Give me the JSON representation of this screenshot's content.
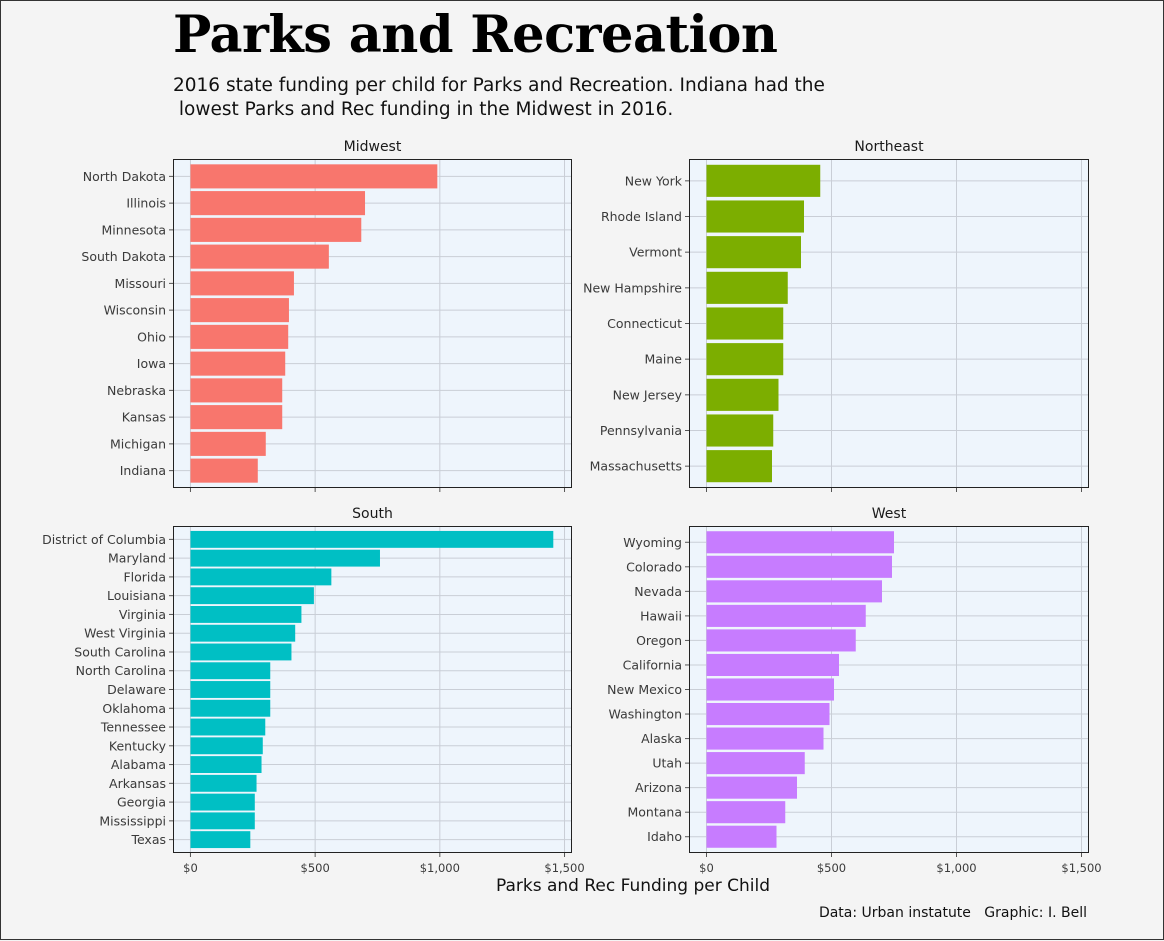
{
  "title": "Parks and Recreation",
  "subtitle": "2016 state funding per child for Parks and Recreation. Indiana had the\n lowest Parks and Rec funding in the Midwest in 2016.",
  "x_axis_label": "Parks and Rec Funding per Child",
  "caption": "Data: Urban instatute   Graphic: I. Bell",
  "colors": {
    "Midwest": "#f8766d",
    "Northeast": "#7cae00",
    "South": "#00bfc4",
    "West": "#c77cff",
    "panel_bg": "#eef5fc",
    "grid": "#c9ced6"
  },
  "chart_data": [
    {
      "type": "bar",
      "orientation": "horizontal",
      "title": "Midwest",
      "categories": [
        "North Dakota",
        "Illinois",
        "Minnesota",
        "South Dakota",
        "Missouri",
        "Wisconsin",
        "Ohio",
        "Iowa",
        "Nebraska",
        "Kansas",
        "Michigan",
        "Indiana"
      ],
      "values": [
        990,
        700,
        685,
        555,
        415,
        395,
        392,
        380,
        368,
        368,
        302,
        270
      ],
      "xlim": [
        -70,
        1530
      ],
      "ticks": [
        0,
        500,
        1000,
        1500
      ],
      "tick_labels": [
        "$0",
        "$500",
        "$1,000",
        "$1,500"
      ],
      "grid": true
    },
    {
      "type": "bar",
      "orientation": "horizontal",
      "title": "Northeast",
      "categories": [
        "New York",
        "Rhode Island",
        "Vermont",
        "New Hampshire",
        "Connecticut",
        "Maine",
        "New Jersey",
        "Pennsylvania",
        "Massachusetts"
      ],
      "values": [
        455,
        390,
        378,
        325,
        307,
        307,
        288,
        267,
        262
      ],
      "xlim": [
        -70,
        1530
      ],
      "ticks": [
        0,
        500,
        1000,
        1500
      ],
      "tick_labels": [
        "$0",
        "$500",
        "$1,000",
        "$1,500"
      ],
      "grid": true
    },
    {
      "type": "bar",
      "orientation": "horizontal",
      "title": "South",
      "categories": [
        "District of Columbia",
        "Maryland",
        "Florida",
        "Louisiana",
        "Virginia",
        "West Virginia",
        "South Carolina",
        "North Carolina",
        "Delaware",
        "Oklahoma",
        "Tennessee",
        "Kentucky",
        "Alabama",
        "Arkansas",
        "Georgia",
        "Mississippi",
        "Texas"
      ],
      "values": [
        1455,
        760,
        565,
        495,
        445,
        420,
        405,
        320,
        320,
        320,
        300,
        290,
        285,
        265,
        258,
        258,
        240
      ],
      "xlim": [
        -70,
        1530
      ],
      "ticks": [
        0,
        500,
        1000,
        1500
      ],
      "tick_labels": [
        "$0",
        "$500",
        "$1,000",
        "$1,500"
      ],
      "grid": true
    },
    {
      "type": "bar",
      "orientation": "horizontal",
      "title": "West",
      "categories": [
        "Wyoming",
        "Colorado",
        "Nevada",
        "Hawaii",
        "Oregon",
        "California",
        "New Mexico",
        "Washington",
        "Alaska",
        "Utah",
        "Arizona",
        "Montana",
        "Idaho"
      ],
      "values": [
        750,
        742,
        702,
        637,
        597,
        530,
        510,
        492,
        468,
        393,
        362,
        315,
        280
      ],
      "xlim": [
        -70,
        1530
      ],
      "ticks": [
        0,
        500,
        1000,
        1500
      ],
      "tick_labels": [
        "$0",
        "$500",
        "$1,000",
        "$1,500"
      ],
      "grid": true
    }
  ]
}
